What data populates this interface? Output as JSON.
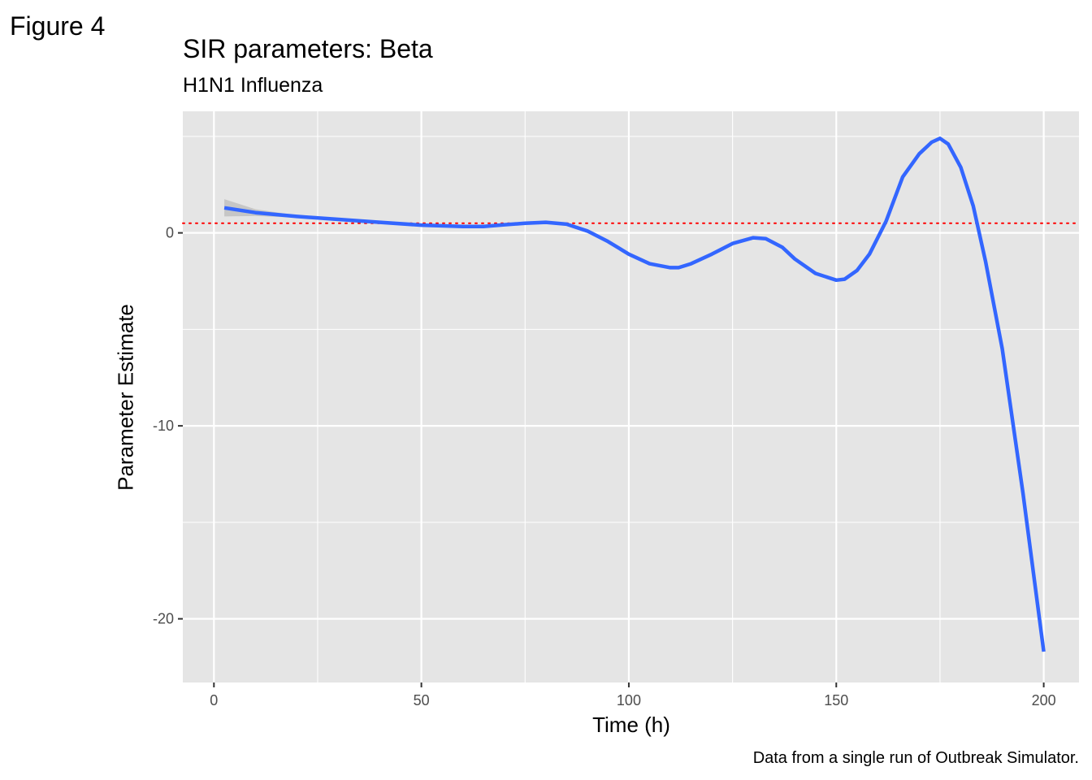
{
  "figure_label": "Figure 4",
  "chart_data": {
    "type": "line",
    "title": "SIR parameters: Beta",
    "subtitle": "H1N1 Influenza",
    "xlabel": "Time (h)",
    "ylabel": "Parameter Estimate",
    "caption": "Data from a single run of Outbreak Simulator.",
    "xlim": [
      -7.5,
      208.5
    ],
    "ylim": [
      -23.3,
      6.3
    ],
    "x_ticks": [
      0,
      50,
      100,
      150,
      200
    ],
    "x_tick_labels": [
      "0",
      "50",
      "100",
      "150",
      "200"
    ],
    "y_ticks": [
      -20,
      -10,
      0
    ],
    "y_tick_labels": [
      "-20",
      "-10",
      "0"
    ],
    "x_minor_ticks": [
      25,
      75,
      125,
      175
    ],
    "y_minor_ticks": [
      -15,
      -5,
      5
    ],
    "grid": true,
    "panel_background": "#e5e5e5",
    "grid_color": "#ffffff",
    "reference_line": {
      "y": 0.5,
      "color": "#ff0000",
      "style": "dotted"
    },
    "series": [
      {
        "color": "#3366ff",
        "ribbon_color": "#999999",
        "x": [
          2.5,
          10,
          20,
          30,
          40,
          50,
          60,
          65,
          70,
          75,
          80,
          85,
          90,
          95,
          100,
          105,
          110,
          112,
          115,
          120,
          125,
          130,
          133,
          137,
          140,
          145,
          150,
          152,
          155,
          158,
          162,
          166,
          170,
          173,
          175,
          177,
          180,
          183,
          186,
          190,
          195,
          200
        ],
        "y": [
          1.3,
          1.05,
          0.85,
          0.7,
          0.55,
          0.4,
          0.33,
          0.33,
          0.42,
          0.5,
          0.55,
          0.45,
          0.1,
          -0.45,
          -1.1,
          -1.6,
          -1.8,
          -1.8,
          -1.6,
          -1.1,
          -0.55,
          -0.25,
          -0.3,
          -0.75,
          -1.35,
          -2.1,
          -2.45,
          -2.4,
          -1.95,
          -1.1,
          0.6,
          2.9,
          4.1,
          4.7,
          4.9,
          4.6,
          3.4,
          1.4,
          -1.5,
          -6.0,
          -13.5,
          -21.7
        ]
      }
    ]
  }
}
